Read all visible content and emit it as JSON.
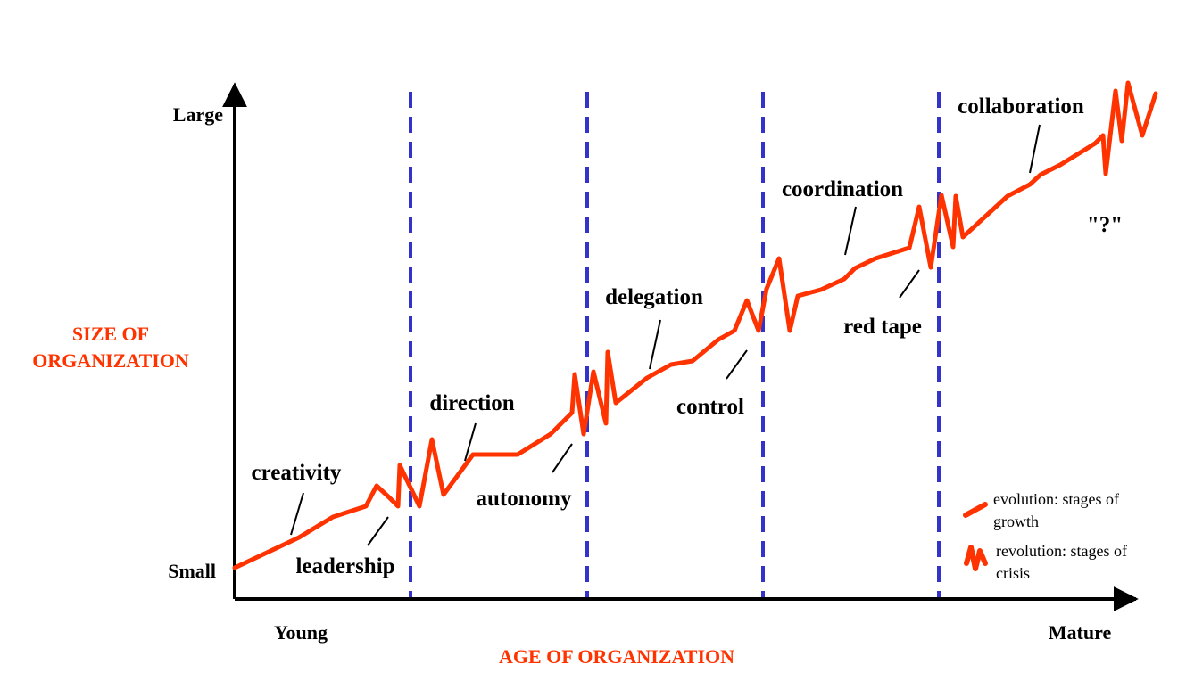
{
  "y_axis": {
    "title_line1": "SIZE OF",
    "title_line2": "ORGANIZATION",
    "top_label": "Large",
    "bottom_label": "Small"
  },
  "x_axis": {
    "title": "AGE OF ORGANIZATION",
    "left_label": "Young",
    "right_label": "Mature"
  },
  "evolution_stages": {
    "creativity": "creativity",
    "direction": "direction",
    "delegation": "delegation",
    "coordination": "coordination",
    "collaboration": "collaboration"
  },
  "revolution_stages": {
    "leadership": "leadership",
    "autonomy": "autonomy",
    "control": "control",
    "red_tape": "red tape",
    "unknown": "\"?\""
  },
  "legend": {
    "evolution_line1": "evolution: stages of",
    "evolution_line2": "growth",
    "revolution_line1": "revolution: stages of",
    "revolution_line2": "crisis"
  },
  "colors": {
    "curve": "#ff3300",
    "axis_title": "#ff3300",
    "divider": "#3333cc",
    "axis": "#000000"
  }
}
